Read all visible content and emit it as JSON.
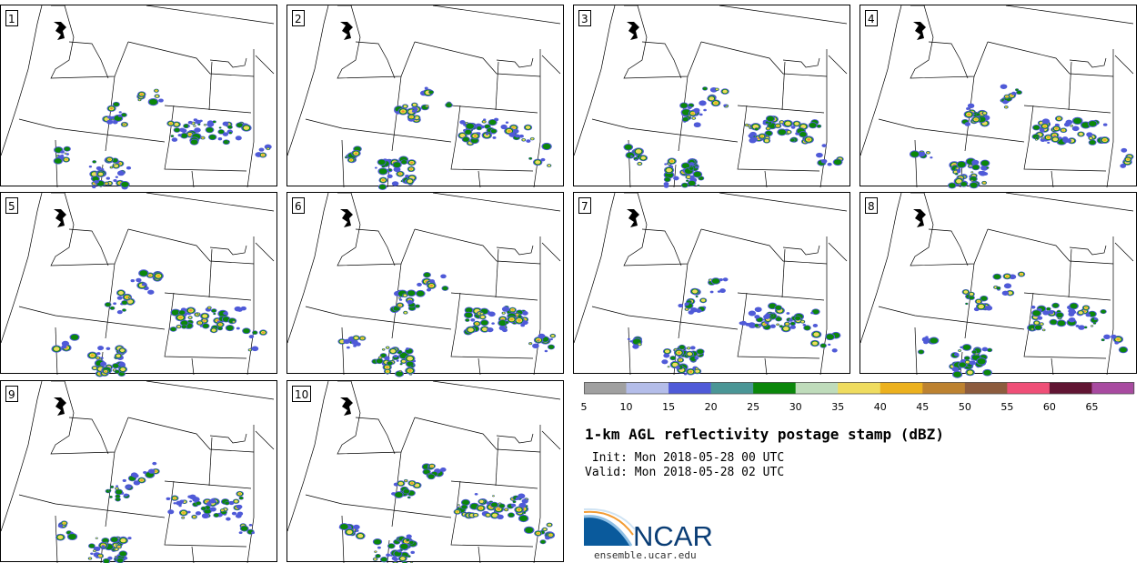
{
  "panels": [
    "1",
    "2",
    "3",
    "4",
    "5",
    "6",
    "7",
    "8",
    "9",
    "10"
  ],
  "colorbar": {
    "colors": [
      "#a0a0a0",
      "#b4bde9",
      "#4f5ad8",
      "#4a9696",
      "#0b870b",
      "#bfdcbb",
      "#efdc5f",
      "#ecb11e",
      "#bd8230",
      "#8d5c3e",
      "#ef4f77",
      "#611533",
      "#a84aa0"
    ],
    "ticks": [
      "5",
      "10",
      "15",
      "20",
      "25",
      "30",
      "35",
      "40",
      "45",
      "50",
      "55",
      "60",
      "65"
    ]
  },
  "title": "1-km AGL reflectivity postage stamp (dBZ)",
  "init_line": " Init: Mon 2018-05-28 00 UTC",
  "valid_line": "Valid: Mon 2018-05-28 02 UTC",
  "logo_text": "NCAR",
  "url": "ensemble.ucar.edu",
  "palette": {
    "low": "#4f5ad8",
    "mid": "#0b870b",
    "high": "#efdc5f",
    "core": "#ecb11e",
    "peak": "#ef4f77"
  }
}
